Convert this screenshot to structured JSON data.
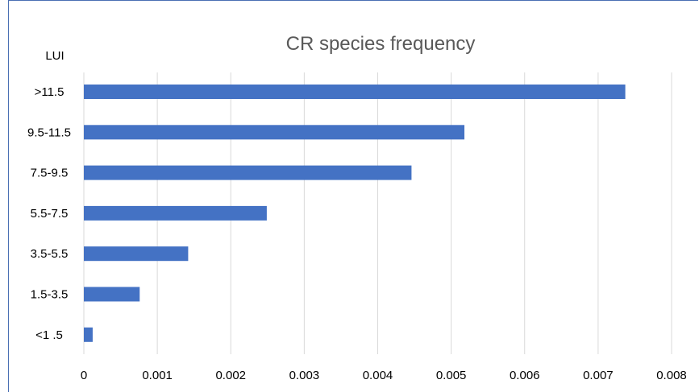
{
  "chart_data": {
    "type": "bar",
    "orientation": "horizontal",
    "title": "CR species frequency",
    "ylabel": "LUI",
    "xlabel": "",
    "categories": [
      ">11.5",
      "9.5-11.5",
      "7.5-9.5",
      "5.5-7.5",
      "3.5-5.5",
      "1.5-3.5",
      "<1 .5"
    ],
    "values": [
      0.00737,
      0.00518,
      0.00446,
      0.00249,
      0.00142,
      0.00076,
      0.00012
    ],
    "xlim": [
      0,
      0.008
    ],
    "xticks": [
      "0",
      "0.001",
      "0.002",
      "0.003",
      "0.004",
      "0.005",
      "0.006",
      "0.007",
      "0.008"
    ],
    "grid": true,
    "legend": "none",
    "colors": {
      "bar": "#4472c4",
      "grid": "#d9d9d9",
      "frame": "#4a6fb3"
    }
  }
}
